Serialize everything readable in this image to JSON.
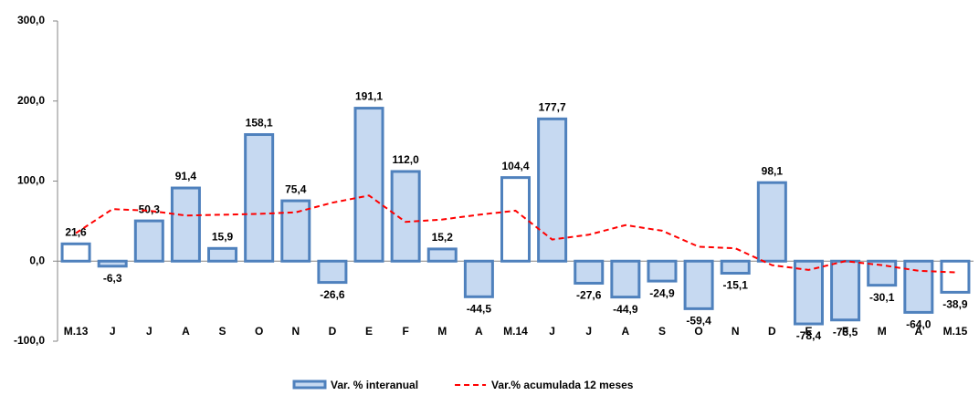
{
  "chart_data": {
    "type": "bar_line",
    "categories": [
      "M.13",
      "J",
      "J",
      "A",
      "S",
      "O",
      "N",
      "D",
      "E",
      "F",
      "M",
      "A",
      "M.14",
      "J",
      "J",
      "A",
      "S",
      "O",
      "N",
      "D",
      "E",
      "F",
      "M",
      "A",
      "M.15"
    ],
    "series": [
      {
        "name": "Var. % interanual",
        "type": "bar",
        "color": "#c6d9f1",
        "edge_color": "#4f81bd",
        "colors": [
          "#ffffff",
          "#c6d9f1",
          "#c6d9f1",
          "#c6d9f1",
          "#c6d9f1",
          "#c6d9f1",
          "#c6d9f1",
          "#c6d9f1",
          "#c6d9f1",
          "#c6d9f1",
          "#c6d9f1",
          "#c6d9f1",
          "#ffffff",
          "#c6d9f1",
          "#c6d9f1",
          "#c6d9f1",
          "#c6d9f1",
          "#c6d9f1",
          "#c6d9f1",
          "#c6d9f1",
          "#c6d9f1",
          "#c6d9f1",
          "#c6d9f1",
          "#c6d9f1",
          "#ffffff"
        ],
        "values": [
          21.6,
          -6.3,
          50.3,
          91.4,
          15.9,
          158.1,
          75.4,
          -26.6,
          191.1,
          112.0,
          15.2,
          -44.5,
          104.4,
          177.7,
          -27.6,
          -44.9,
          -24.9,
          -59.4,
          -15.1,
          98.1,
          -78.4,
          -73.5,
          -30.1,
          -64.0,
          -38.9
        ],
        "value_labels": [
          "21,6",
          "-6,3",
          "50,3",
          "91,4",
          "15,9",
          "158,1",
          "75,4",
          "-26,6",
          "191,1",
          "112,0",
          "15,2",
          "-44,5",
          "104,4",
          "177,7",
          "-27,6",
          "-44,9",
          "-24,9",
          "-59,4",
          "-15,1",
          "98,1",
          "-78,4",
          "-73,5",
          "-30,1",
          "-64,0",
          "-38,9"
        ]
      },
      {
        "name": "Var.% acumulada 12 meses",
        "type": "line",
        "color": "#ff0000",
        "dashed": true,
        "values": [
          35,
          65,
          63,
          57,
          58,
          59,
          61,
          73,
          82,
          49,
          52,
          58,
          63,
          27,
          33,
          45,
          38,
          18,
          16,
          -5,
          -11,
          0,
          -5,
          -12,
          -14
        ]
      }
    ],
    "ylim": [
      -100,
      300
    ],
    "yticks": [
      {
        "value": -100,
        "label": "-100,0"
      },
      {
        "value": 0,
        "label": "0,0"
      },
      {
        "value": 100,
        "label": "100,0"
      },
      {
        "value": 200,
        "label": "200,0"
      },
      {
        "value": 300,
        "label": "300,0"
      }
    ],
    "grid": false
  }
}
